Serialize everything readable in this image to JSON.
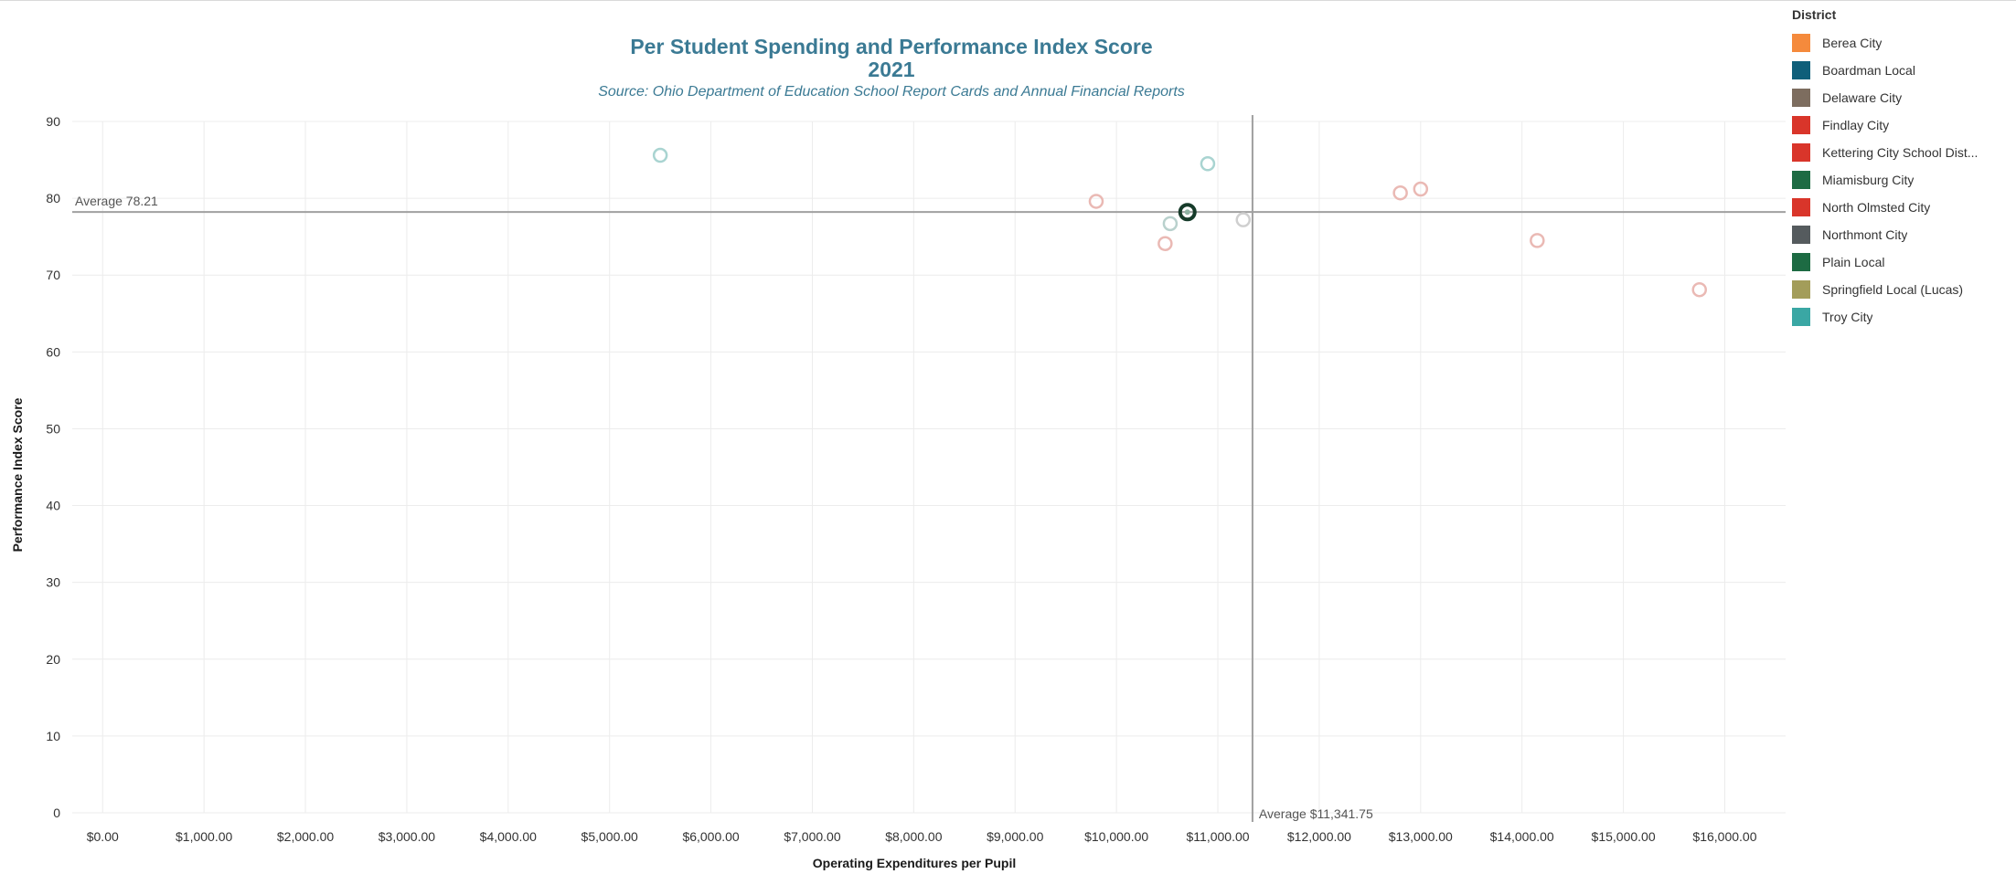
{
  "chart_data": {
    "type": "scatter",
    "title": "Per Student Spending and Performance Index Score",
    "subtitle": "2021",
    "source": "Source:  Ohio Department of Education School Report Cards and Annual Financial Reports",
    "xlabel": "Operating Expenditures per Pupil",
    "ylabel": "Performance Index Score",
    "xlim": [
      -300,
      16600
    ],
    "ylim": [
      0,
      90
    ],
    "x_ticks": [
      {
        "value": 0,
        "label": "$0.00"
      },
      {
        "value": 1000,
        "label": "$1,000.00"
      },
      {
        "value": 2000,
        "label": "$2,000.00"
      },
      {
        "value": 3000,
        "label": "$3,000.00"
      },
      {
        "value": 4000,
        "label": "$4,000.00"
      },
      {
        "value": 5000,
        "label": "$5,000.00"
      },
      {
        "value": 6000,
        "label": "$6,000.00"
      },
      {
        "value": 7000,
        "label": "$7,000.00"
      },
      {
        "value": 8000,
        "label": "$8,000.00"
      },
      {
        "value": 9000,
        "label": "$9,000.00"
      },
      {
        "value": 10000,
        "label": "$10,000.00"
      },
      {
        "value": 11000,
        "label": "$11,000.00"
      },
      {
        "value": 12000,
        "label": "$12,000.00"
      },
      {
        "value": 13000,
        "label": "$13,000.00"
      },
      {
        "value": 14000,
        "label": "$14,000.00"
      },
      {
        "value": 15000,
        "label": "$15,000.00"
      },
      {
        "value": 16000,
        "label": "$16,000.00"
      }
    ],
    "y_ticks": [
      {
        "value": 0,
        "label": "0"
      },
      {
        "value": 10,
        "label": "10"
      },
      {
        "value": 20,
        "label": "20"
      },
      {
        "value": 30,
        "label": "30"
      },
      {
        "value": 40,
        "label": "40"
      },
      {
        "value": 50,
        "label": "50"
      },
      {
        "value": 60,
        "label": "60"
      },
      {
        "value": 70,
        "label": "70"
      },
      {
        "value": 80,
        "label": "80"
      },
      {
        "value": 90,
        "label": "90"
      }
    ],
    "grid": true,
    "reference_lines": {
      "y": {
        "value": 78.21,
        "label": "Average 78.21"
      },
      "x": {
        "value": 11341.75,
        "label": "Average $11,341.75"
      }
    },
    "legend": {
      "title": "District",
      "position": "right",
      "items": [
        {
          "name": "Berea City",
          "color": "#f58a3c"
        },
        {
          "name": "Boardman Local",
          "color": "#0f5f7a"
        },
        {
          "name": "Delaware City",
          "color": "#7d6d5f"
        },
        {
          "name": "Findlay City",
          "color": "#d9352a"
        },
        {
          "name": "Kettering City School Dist...",
          "color": "#d9352a"
        },
        {
          "name": "Miamisburg City",
          "color": "#1d6b43"
        },
        {
          "name": "North Olmsted City",
          "color": "#d9352a"
        },
        {
          "name": "Northmont City",
          "color": "#555b5e"
        },
        {
          "name": "Plain Local",
          "color": "#1d6b43"
        },
        {
          "name": "Springfield Local (Lucas)",
          "color": "#a39d5a"
        },
        {
          "name": "Troy City",
          "color": "#3aa7a4"
        }
      ]
    },
    "points": [
      {
        "x": 5500,
        "y": 85.6,
        "color": "#a9d4d1",
        "highlight": false
      },
      {
        "x": 9800,
        "y": 79.6,
        "color": "#eab9b4",
        "highlight": false
      },
      {
        "x": 10480,
        "y": 74.1,
        "color": "#eab9b4",
        "highlight": false
      },
      {
        "x": 10530,
        "y": 76.7,
        "color": "#b9d1cd",
        "highlight": false
      },
      {
        "x": 10900,
        "y": 84.5,
        "color": "#a9d4d1",
        "highlight": false
      },
      {
        "x": 11250,
        "y": 77.2,
        "color": "#cfcfcf",
        "highlight": false
      },
      {
        "x": 12800,
        "y": 80.7,
        "color": "#eab9b4",
        "highlight": false
      },
      {
        "x": 13000,
        "y": 81.2,
        "color": "#eab9b4",
        "highlight": false
      },
      {
        "x": 14150,
        "y": 74.5,
        "color": "#eab9b4",
        "highlight": false
      },
      {
        "x": 15750,
        "y": 68.1,
        "color": "#eab9b4",
        "highlight": false
      },
      {
        "x": 10700,
        "y": 78.2,
        "color": "#163b2a",
        "highlight": true
      }
    ]
  }
}
